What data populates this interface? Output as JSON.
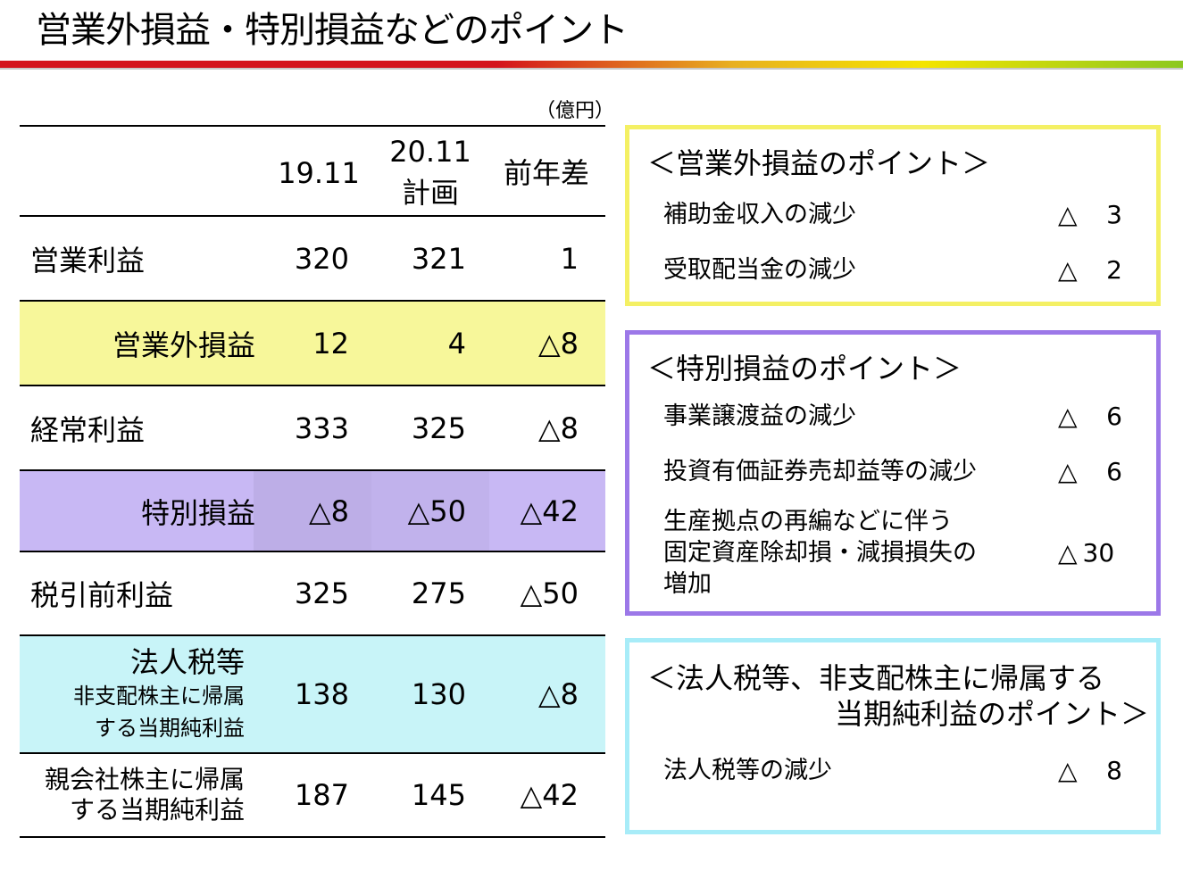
{
  "title": "営業外損益・特別損益などのポイント",
  "unit": "（億円）",
  "table": {
    "headers": {
      "col1": "19.11",
      "col2_line1": "20.11",
      "col2_line2": "計画",
      "col3": "前年差"
    },
    "rows": [
      {
        "label": "営業利益",
        "v1": "320",
        "v2": "321",
        "v3": "1"
      },
      {
        "label": "営業外損益",
        "v1": "12",
        "v2": "4",
        "v3": "△8"
      },
      {
        "label": "経常利益",
        "v1": "333",
        "v2": "325",
        "v3": "△8"
      },
      {
        "label": "特別損益",
        "v1": "△8",
        "v2": "△50",
        "v3": "△42"
      },
      {
        "label": "税引前利益",
        "v1": "325",
        "v2": "275",
        "v3": "△50"
      },
      {
        "label": "法人税等",
        "label_sub1": "非支配株主に帰属",
        "label_sub2": "する当期純利益",
        "v1": "138",
        "v2": "130",
        "v3": "△8"
      },
      {
        "label_line1": "親会社株主に帰属",
        "label_line2": "する当期純利益",
        "v1": "187",
        "v2": "145",
        "v3": "△42"
      }
    ]
  },
  "boxes": {
    "non_operating": {
      "title": "＜営業外損益のポイント＞",
      "items": [
        {
          "text": "補助金収入の減少",
          "sign": "△",
          "value": "3"
        },
        {
          "text": "受取配当金の減少",
          "sign": "△",
          "value": "2"
        }
      ]
    },
    "extraordinary": {
      "title": "＜特別損益のポイント＞",
      "items": [
        {
          "text": "事業譲渡益の減少",
          "sign": "△",
          "value": "6"
        },
        {
          "text": "投資有価証券売却益等の減少",
          "sign": "△",
          "value": "6"
        },
        {
          "text_line1": "生産拠点の再編などに伴う",
          "text_line2": "固定資産除却損・減損損失の",
          "text_line3": "増加",
          "sign": "△",
          "value": "30"
        }
      ]
    },
    "tax": {
      "title_line1": "＜法人税等、非支配株主に帰属する",
      "title_line2": "当期純利益のポイント＞",
      "items": [
        {
          "text": "法人税等の減少",
          "sign": "△",
          "value": "8"
        }
      ]
    }
  },
  "colors": {
    "title_bar_start": "#d4141c",
    "title_bar_end": "#8cc820",
    "yellow": "#f7f79a",
    "purple": "#c8b8f4",
    "cyan": "#c8f4f8",
    "yellow_border": "#f4f064",
    "purple_border": "#9c78e8",
    "cyan_border": "#a8ecf8"
  }
}
